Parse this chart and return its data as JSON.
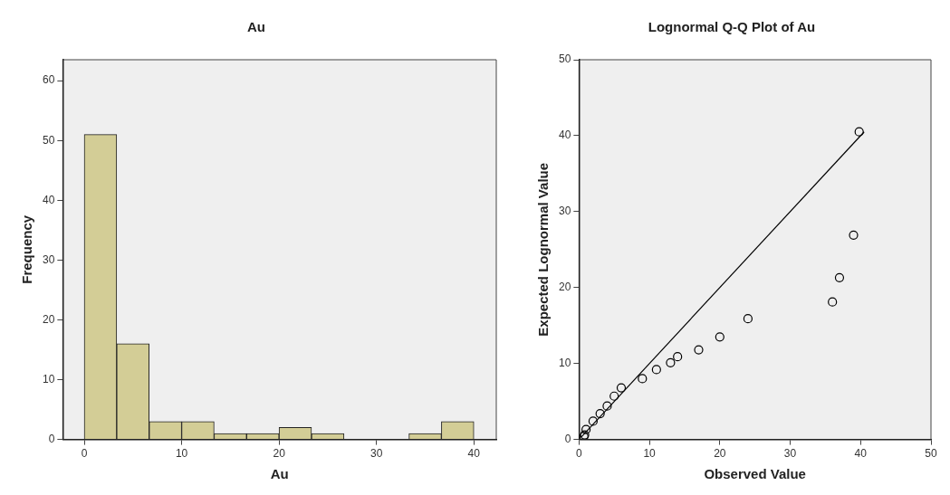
{
  "chart_data": [
    {
      "type": "histogram",
      "title": "Au",
      "xlabel": "Au",
      "ylabel": "Frequency",
      "bins": [
        0,
        3.333,
        6.667,
        10,
        13.333,
        16.667,
        20,
        23.333,
        26.667,
        30,
        33.333,
        36.667,
        40
      ],
      "values": [
        51,
        16,
        3,
        3,
        1,
        1,
        2,
        1,
        0,
        0,
        1,
        3
      ],
      "color": "#d3cd96",
      "xlim": [
        -2.2,
        42.3
      ],
      "xticks": [
        0,
        10,
        20,
        30,
        40
      ],
      "ylim": [
        0,
        63.5
      ],
      "yticks": [
        0,
        10,
        20,
        30,
        40,
        50,
        60
      ],
      "grid": false,
      "legend": false
    },
    {
      "type": "scatter",
      "title": "Lognormal Q-Q Plot of Au",
      "xlabel": "Observed Value",
      "ylabel": "Expected Lognormal Value",
      "series": [
        {
          "type": "scatter",
          "color": "#000000",
          "marker": "circle",
          "x": [
            0.7,
            0.8,
            1,
            2,
            3,
            4,
            5,
            6,
            9,
            11,
            13,
            14,
            17,
            20,
            24,
            36,
            37,
            39,
            39.8
          ],
          "values": [
            0.4,
            0.6,
            1.3,
            2.4,
            3.4,
            4.4,
            5.7,
            6.8,
            8,
            9.2,
            10.1,
            10.9,
            11.8,
            13.5,
            15.9,
            18.1,
            21.3,
            26.9,
            40.5
          ]
        },
        {
          "type": "line",
          "color": "#000000",
          "marker": "none",
          "x": [
            0.3,
            40.5
          ],
          "values": [
            0.3,
            40.5
          ]
        }
      ],
      "xlim": [
        0,
        50
      ],
      "xticks": [
        0,
        10,
        20,
        30,
        40,
        50
      ],
      "ylim": [
        0,
        50
      ],
      "yticks": [
        0,
        10,
        20,
        30,
        40,
        50
      ],
      "grid": false,
      "legend": false
    }
  ]
}
